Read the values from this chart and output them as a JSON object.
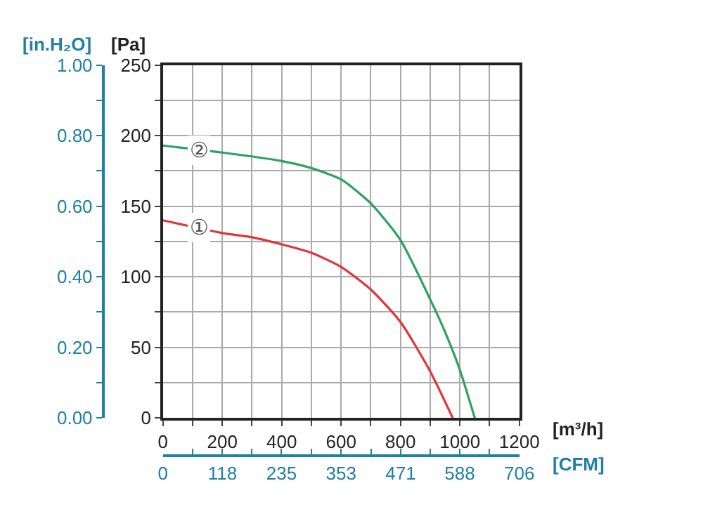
{
  "chart_data": {
    "type": "line",
    "xlabel": "[m³/h]",
    "ylabel": "[Pa]",
    "y2label": "[in.H₂O]",
    "x2label": "[CFM]",
    "series": [
      {
        "name": "①",
        "color": "#e0363a",
        "x": [
          0,
          200,
          300,
          400,
          500,
          600,
          700,
          800,
          900,
          976
        ],
        "values": [
          140,
          131,
          128,
          123,
          117,
          107,
          91,
          68,
          33,
          0
        ]
      },
      {
        "name": "②",
        "color": "#2ca25f",
        "x": [
          0,
          200,
          400,
          500,
          600,
          700,
          800,
          900,
          950,
          1000,
          1050
        ],
        "values": [
          193,
          188,
          182,
          177,
          169,
          152,
          126,
          84,
          61,
          34,
          0
        ]
      }
    ],
    "xlim": [
      0,
      1200
    ],
    "xticks": [
      0,
      {
        "value": 100,
        "label": null
      },
      200,
      {
        "value": 300,
        "label": null
      },
      400,
      {
        "value": 500,
        "label": null
      },
      600,
      {
        "value": 700,
        "label": null
      },
      800,
      {
        "value": 900,
        "label": null
      },
      1000,
      {
        "value": 1100,
        "label": null
      },
      1200
    ],
    "ylim": [
      0,
      250
    ],
    "yticks": [
      0,
      {
        "value": 25,
        "label": null
      },
      50,
      {
        "value": 75,
        "label": null
      },
      100,
      {
        "value": 125,
        "label": null
      },
      150,
      {
        "value": 175,
        "label": null
      },
      200,
      {
        "value": 225,
        "label": null
      },
      250
    ],
    "y2lim": [
      0,
      1
    ],
    "y2ticks": [
      {
        "value": 0,
        "label": "0.00"
      },
      {
        "value": 0.1,
        "label": null
      },
      {
        "value": 0.2,
        "label": "0.20"
      },
      {
        "value": 0.3,
        "label": null
      },
      {
        "value": 0.4,
        "label": "0.40"
      },
      {
        "value": 0.5,
        "label": null
      },
      {
        "value": 0.6,
        "label": "0.60"
      },
      {
        "value": 0.7,
        "label": null
      },
      {
        "value": 0.8,
        "label": "0.80"
      },
      {
        "value": 0.9,
        "label": null
      },
      {
        "value": 1,
        "label": "1.00"
      }
    ],
    "x2lim": [
      0,
      706
    ],
    "x2ticks": [
      0,
      {
        "value": 59,
        "label": null
      },
      118,
      {
        "value": 176.5,
        "label": null
      },
      235,
      {
        "value": 294,
        "label": null
      },
      353,
      {
        "value": 412,
        "label": null
      },
      471,
      {
        "value": 529.5,
        "label": null
      },
      588,
      {
        "value": 647,
        "label": null
      },
      706
    ],
    "grid": true,
    "legend": false,
    "marker": "none",
    "line_style": "solid"
  }
}
